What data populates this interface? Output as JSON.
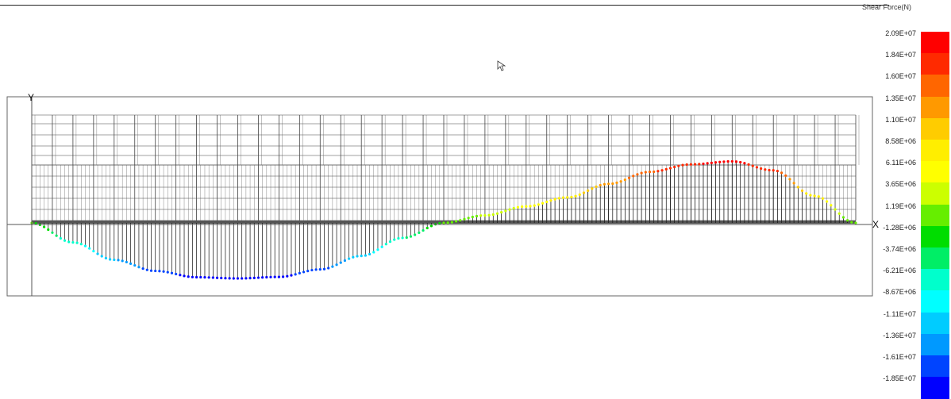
{
  "legend": {
    "title": "Shear Force(N)",
    "labels": [
      "2.09E+07",
      "1.84E+07",
      "1.60E+07",
      "1.35E+07",
      "1.10E+07",
      "8.58E+06",
      "6.11E+06",
      "3.65E+06",
      "1.19E+06",
      "-1.28E+06",
      "-3.74E+06",
      "-6.21E+06",
      "-8.67E+06",
      "-1.11E+07",
      "-1.36E+07",
      "-1.61E+07",
      "-1.85E+07"
    ],
    "colors": [
      "#ff0000",
      "#ff2a00",
      "#ff6600",
      "#ff9900",
      "#ffcc00",
      "#ffee00",
      "#ffff00",
      "#ccff00",
      "#66ee00",
      "#00dd00",
      "#00ee66",
      "#00ffcc",
      "#00ffff",
      "#00ccff",
      "#0099ff",
      "#0044ff",
      "#0000ff"
    ]
  },
  "axes": {
    "x_label": "X",
    "y_label": "Y"
  },
  "chart_data": {
    "type": "line",
    "title": "",
    "unit": "N",
    "series": [
      {
        "x": [
          0.0,
          0.05,
          0.1,
          0.15,
          0.2,
          0.25,
          0.3,
          0.35,
          0.4,
          0.45,
          0.5,
          0.55,
          0.6,
          0.65,
          0.7,
          0.75,
          0.8,
          0.85,
          0.9,
          0.95,
          1.0
        ],
        "values": [
          0,
          -6500000.0,
          -12300000.0,
          -16000000.0,
          -18100000.0,
          -18500000.0,
          -18000000.0,
          -15500000.0,
          -11000000.0,
          -5000000.0,
          0,
          2500000.0,
          5500000.0,
          8500000.0,
          13000000.0,
          17000000.0,
          19500000.0,
          20500000.0,
          17500000.0,
          9000000.0,
          0
        ]
      }
    ],
    "ylim": [
      -18500000.0,
      20900000.0
    ]
  }
}
